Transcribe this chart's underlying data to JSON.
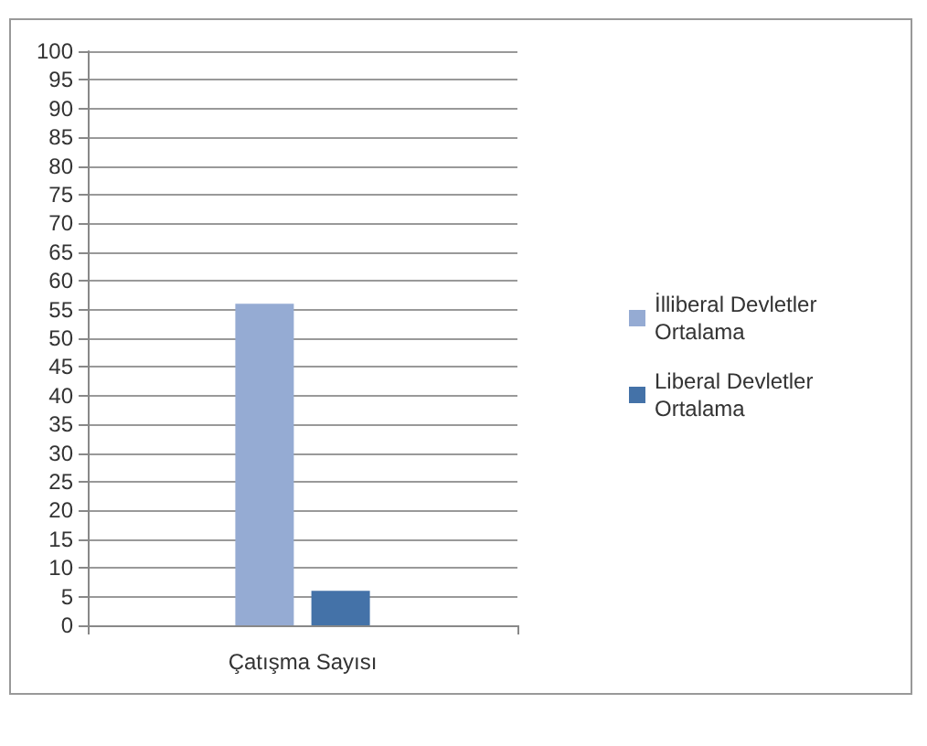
{
  "chart_data": {
    "type": "bar",
    "categories": [
      "Çatışma Sayısı"
    ],
    "series": [
      {
        "name": "İlliberal Devletler Ortalama",
        "color": "#95abd3",
        "values": [
          56
        ]
      },
      {
        "name": "Liberal Devletler Ortalama",
        "color": "#4472a8",
        "values": [
          6
        ]
      }
    ],
    "ylim": [
      0,
      100
    ],
    "yticks": [
      0,
      5,
      10,
      15,
      20,
      25,
      30,
      35,
      40,
      45,
      50,
      55,
      60,
      65,
      70,
      75,
      80,
      85,
      90,
      95,
      100
    ],
    "grid": "y",
    "legend": "right"
  }
}
